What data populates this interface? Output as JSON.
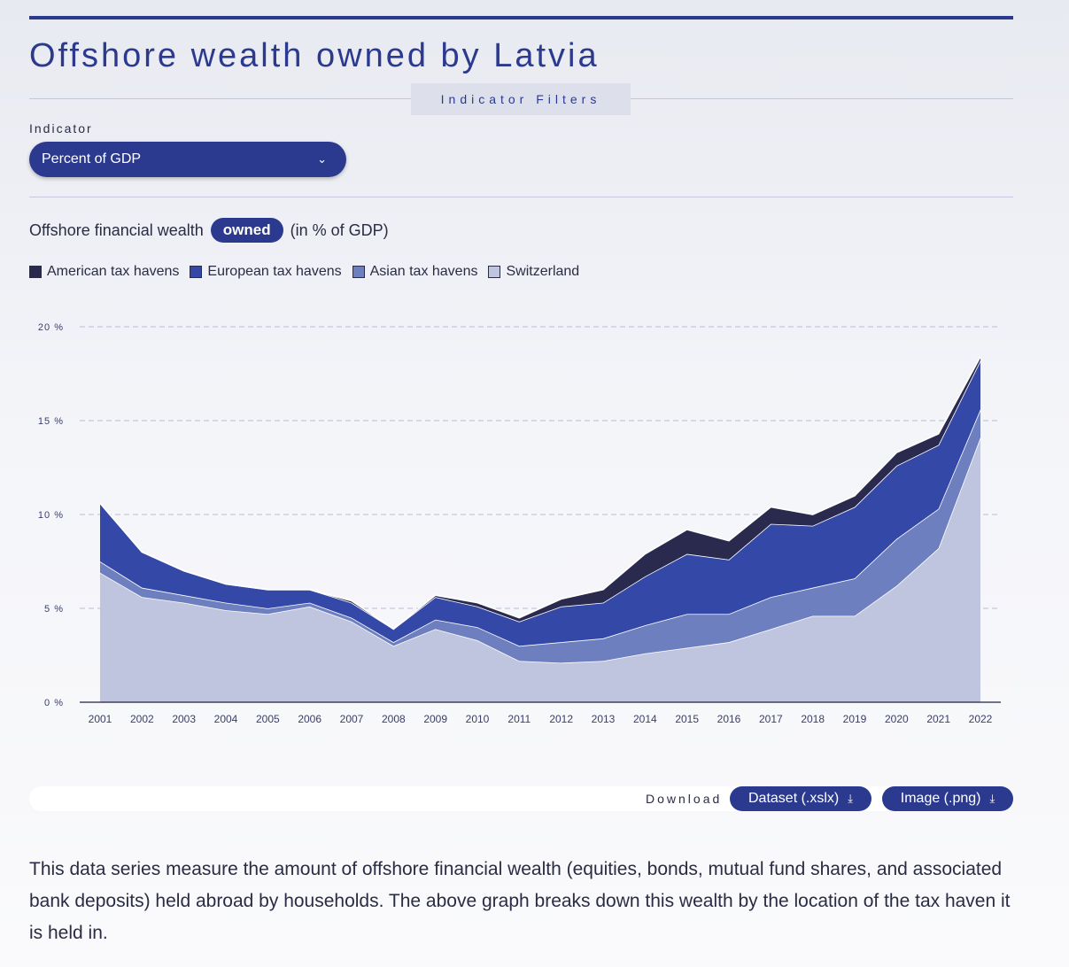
{
  "header": {
    "title": "Offshore wealth owned by Latvia",
    "filters_tab": "Indicator Filters"
  },
  "filters": {
    "indicator_label": "Indicator",
    "indicator_value": "Percent of GDP"
  },
  "chart_heading": {
    "prefix": "Offshore financial wealth",
    "pill": "owned",
    "suffix": "(in % of GDP)"
  },
  "colors": {
    "american": "#2a2a4e",
    "european": "#3448a8",
    "asian": "#6e7fbf",
    "switzerland": "#bfc5df",
    "accent": "#2b3a8f"
  },
  "chart_data": {
    "type": "area",
    "stacked": true,
    "title": "Offshore financial wealth owned (in % of GDP)",
    "x": [
      "2001",
      "2002",
      "2003",
      "2004",
      "2005",
      "2006",
      "2007",
      "2008",
      "2009",
      "2010",
      "2011",
      "2012",
      "2013",
      "2014",
      "2015",
      "2016",
      "2017",
      "2018",
      "2019",
      "2020",
      "2021",
      "2022"
    ],
    "series": [
      {
        "name": "Switzerland",
        "values": [
          6.9,
          5.6,
          5.3,
          4.9,
          4.7,
          5.1,
          4.3,
          3.0,
          3.9,
          3.3,
          2.2,
          2.1,
          2.2,
          2.6,
          2.9,
          3.2,
          3.9,
          4.6,
          4.6,
          6.2,
          8.2,
          14.1
        ]
      },
      {
        "name": "Asian tax havens",
        "values": [
          0.6,
          0.5,
          0.4,
          0.4,
          0.3,
          0.2,
          0.2,
          0.2,
          0.5,
          0.7,
          0.8,
          1.1,
          1.2,
          1.5,
          1.8,
          1.5,
          1.7,
          1.5,
          2.0,
          2.5,
          2.1,
          1.5
        ]
      },
      {
        "name": "European tax havens",
        "values": [
          3.1,
          1.9,
          1.3,
          1.0,
          1.0,
          0.7,
          0.8,
          0.7,
          1.2,
          1.1,
          1.3,
          1.9,
          1.9,
          2.6,
          3.2,
          2.9,
          3.9,
          3.3,
          3.8,
          3.9,
          3.4,
          2.6
        ]
      },
      {
        "name": "American tax havens",
        "values": [
          0.0,
          0.0,
          0.0,
          0.0,
          0.0,
          0.0,
          0.1,
          0.0,
          0.1,
          0.2,
          0.2,
          0.4,
          0.7,
          1.2,
          1.3,
          1.0,
          0.9,
          0.6,
          0.6,
          0.7,
          0.6,
          0.2
        ]
      }
    ],
    "legend": [
      "American tax havens",
      "European tax havens",
      "Asian tax havens",
      "Switzerland"
    ],
    "y_ticks": [
      "0 %",
      "5 %",
      "10 %",
      "15 %",
      "20 %"
    ],
    "ylim": [
      0,
      20
    ],
    "grid": true,
    "legend_position": "top-left"
  },
  "download": {
    "label": "Download",
    "dataset": "Dataset (.xslx)",
    "image": "Image (.png)"
  },
  "description": "This data series measure the amount of offshore financial wealth (equities, bonds, mutual fund shares, and associated bank deposits) held abroad by households. The above graph breaks down this wealth by the location of the tax haven it is held in."
}
